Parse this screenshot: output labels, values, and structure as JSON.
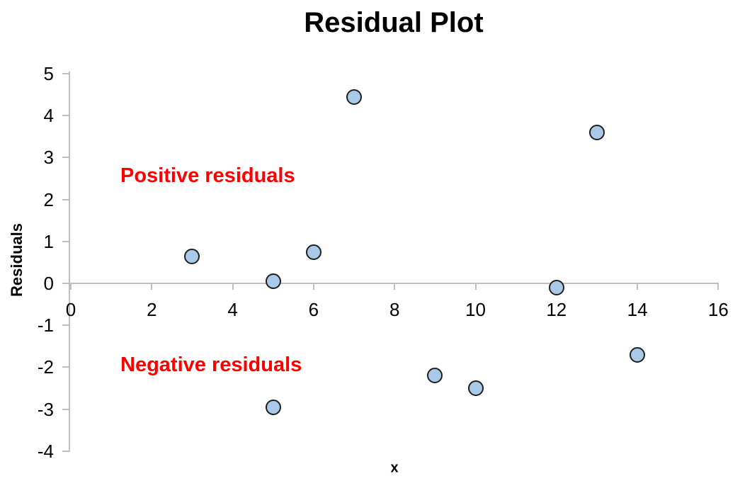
{
  "title": "Residual Plot",
  "axes": {
    "x_label": "x",
    "y_label": "Residuals",
    "x_ticks": [
      0,
      2,
      4,
      6,
      8,
      10,
      12,
      14,
      16
    ],
    "y_ticks": [
      5,
      4,
      3,
      2,
      1,
      0,
      -1,
      -2,
      -3,
      -4
    ]
  },
  "annotations": {
    "positive": "Positive residuals",
    "negative": "Negative residuals"
  },
  "colors": {
    "marker_fill": "#a9c9e8",
    "marker_border": "#1f1f1f",
    "axis_line": "#bfbfbf",
    "annotation": "#ff0000",
    "text": "#000000"
  },
  "chart_data": {
    "type": "scatter",
    "title": "Residual Plot",
    "xlabel": "x",
    "ylabel": "Residuals",
    "xlim": [
      0,
      16
    ],
    "ylim": [
      -4,
      5
    ],
    "grid": false,
    "legend": "none",
    "points": [
      {
        "x": 3,
        "y": 0.65
      },
      {
        "x": 5,
        "y": 0.05
      },
      {
        "x": 5,
        "y": -2.95
      },
      {
        "x": 6,
        "y": 0.75
      },
      {
        "x": 7,
        "y": 4.45
      },
      {
        "x": 9,
        "y": -2.2
      },
      {
        "x": 10,
        "y": -2.5
      },
      {
        "x": 12,
        "y": -0.1
      },
      {
        "x": 13,
        "y": 3.6
      },
      {
        "x": 14,
        "y": -1.7
      }
    ],
    "text_annotations": [
      {
        "text": "Positive residuals",
        "color": "#ff0000",
        "near": {
          "x": 2,
          "y": 2.5
        }
      },
      {
        "text": "Negative residuals",
        "color": "#ff0000",
        "near": {
          "x": 2,
          "y": -2.0
        }
      }
    ]
  }
}
